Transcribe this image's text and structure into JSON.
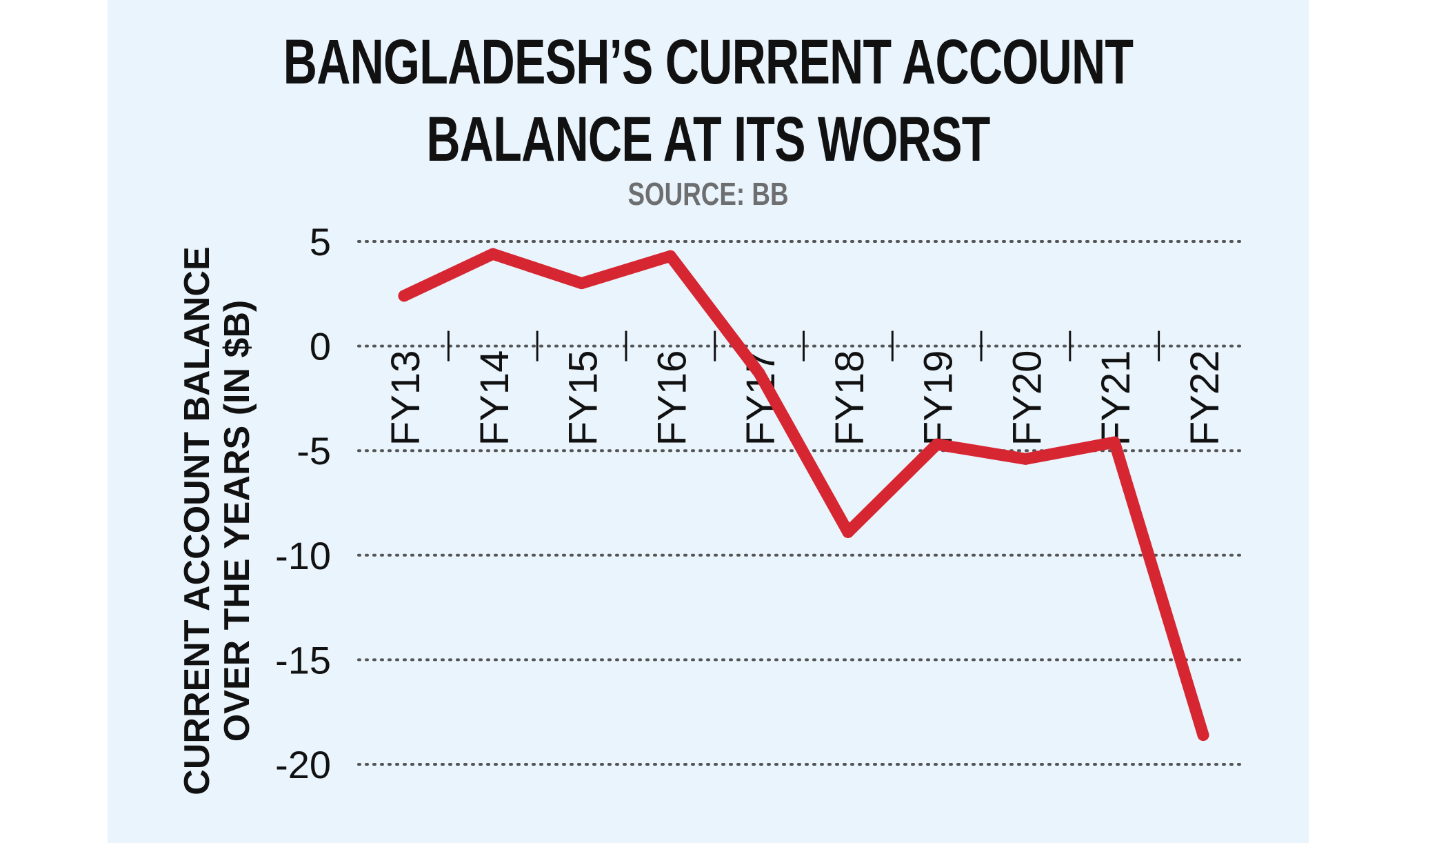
{
  "title_lines": [
    "BANGLADESH’S CURRENT ACCOUNT",
    "BALANCE AT ITS WORST"
  ],
  "source": "SOURCE: BB",
  "chart_data": {
    "type": "line",
    "title": "BANGLADESH’S CURRENT ACCOUNT BALANCE AT ITS WORST",
    "ylabel_lines": [
      "CURRENT ACCOUNT BALANCE",
      "OVER THE YEARS (IN $B)"
    ],
    "categories": [
      "FY13",
      "FY14",
      "FY15",
      "FY16",
      "FY17",
      "FY18",
      "FY19",
      "FY20",
      "FY21",
      "FY22"
    ],
    "series": [
      {
        "values": [
          2.4,
          4.4,
          3.0,
          4.3,
          -1.3,
          -8.9,
          -4.7,
          -5.4,
          -4.6,
          -18.6
        ],
        "color": "#d62631"
      }
    ],
    "ylim": [
      -20,
      5
    ],
    "yticks": [
      5,
      0,
      -5,
      -10,
      -15,
      -20
    ],
    "ytick_labels": [
      "5",
      "0",
      "-5",
      "-10",
      "-15",
      "-20"
    ],
    "grid": "dotted horizontal",
    "colors": {
      "background": "#eaf4fc",
      "line": "#d62631",
      "grid": "#555555"
    }
  }
}
